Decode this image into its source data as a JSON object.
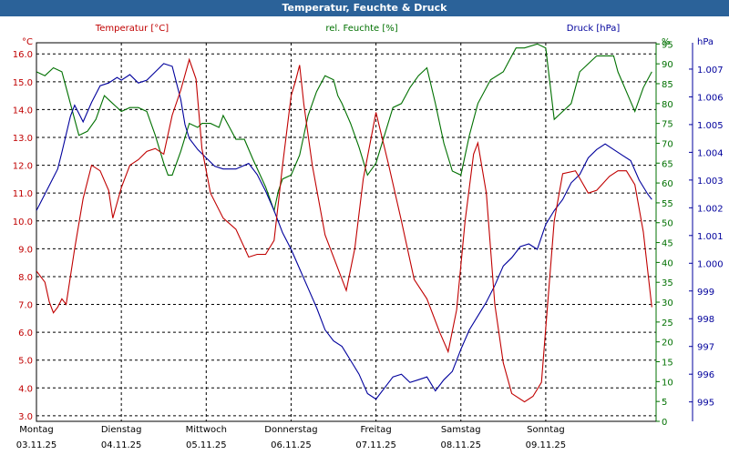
{
  "window_title": "Temperatur, Feuchte & Druck",
  "colors": {
    "temperature": "#c00000",
    "humidity": "#007000",
    "pressure": "#00009c",
    "grid": "#000000",
    "title_bar": "#2b6299"
  },
  "chart_data": {
    "type": "line",
    "title": "Temperatur, Feuchte & Druck",
    "x": {
      "unit": "days since Montag 03.11.25 00:00",
      "range": [
        0,
        7.3
      ],
      "ticks": [
        {
          "day": "Montag",
          "date": "03.11.25"
        },
        {
          "day": "Dienstag",
          "date": "04.11.25"
        },
        {
          "day": "Mittwoch",
          "date": "05.11.25"
        },
        {
          "day": "Donnerstag",
          "date": "06.11.25"
        },
        {
          "day": "Freitag",
          "date": "07.11.25"
        },
        {
          "day": "Samstag",
          "date": "08.11.25"
        },
        {
          "day": "Sonntag",
          "date": "09.11.25"
        }
      ]
    },
    "axes": {
      "temperature": {
        "label": "Temperatur [°C]",
        "unit_label": "°C",
        "range": [
          2.8,
          16.4
        ],
        "ticks": [
          "3.0",
          "4.0",
          "5.0",
          "6.0",
          "7.0",
          "8.0",
          "9.0",
          "10.0",
          "11.0",
          "12.0",
          "13.0",
          "14.0",
          "15.0",
          "16.0"
        ]
      },
      "humidity": {
        "label": "rel. Feuchte [%]",
        "unit_label": "%",
        "range": [
          0,
          95.3
        ],
        "ticks": [
          "0",
          "5",
          "10",
          "15",
          "20",
          "25",
          "30",
          "35",
          "40",
          "45",
          "50",
          "55",
          "60",
          "65",
          "70",
          "75",
          "80",
          "85",
          "90",
          "95"
        ]
      },
      "pressure": {
        "label": "Druck [hPa]",
        "unit_label": "hPa",
        "range": [
          994.3,
          1007.95
        ],
        "ticks": [
          "995",
          "996",
          "997",
          "998",
          "999",
          "1.000",
          "1.001",
          "1.002",
          "1.003",
          "1.004",
          "1.005",
          "1.006",
          "1.007"
        ]
      }
    },
    "series": [
      {
        "name": "Temperatur [°C]",
        "axis": "temperature",
        "x": [
          0,
          0.1,
          0.15,
          0.2,
          0.25,
          0.3,
          0.35,
          0.45,
          0.55,
          0.65,
          0.75,
          0.85,
          0.9,
          1.0,
          1.1,
          1.2,
          1.3,
          1.4,
          1.5,
          1.6,
          1.7,
          1.8,
          1.88,
          1.95,
          2.05,
          2.2,
          2.35,
          2.5,
          2.6,
          2.7,
          2.8,
          2.9,
          3.0,
          3.05,
          3.1,
          3.15,
          3.25,
          3.4,
          3.55,
          3.65,
          3.75,
          3.85,
          4.0,
          4.15,
          4.3,
          4.45,
          4.6,
          4.75,
          4.85,
          4.95,
          5.05,
          5.15,
          5.2,
          5.3,
          5.4,
          5.5,
          5.6,
          5.75,
          5.85,
          5.95,
          6.1,
          6.2,
          6.35,
          6.5,
          6.6,
          6.75,
          6.85,
          6.95,
          7.05,
          7.15,
          7.25
        ],
        "values": [
          8.2,
          7.8,
          7.1,
          6.7,
          6.9,
          7.2,
          7.0,
          9.0,
          10.8,
          12.0,
          11.8,
          11.1,
          10.1,
          11.2,
          12.0,
          12.2,
          12.5,
          12.6,
          12.4,
          13.8,
          14.7,
          15.8,
          15.1,
          12.6,
          11.0,
          10.1,
          9.7,
          8.7,
          8.8,
          8.8,
          9.3,
          12.0,
          14.5,
          15.0,
          15.6,
          14.2,
          12.0,
          9.5,
          8.3,
          7.5,
          9.0,
          11.5,
          13.9,
          12.0,
          10.0,
          7.9,
          7.2,
          6.0,
          5.3,
          6.8,
          10.0,
          12.4,
          12.8,
          11.0,
          7.0,
          4.9,
          3.8,
          3.5,
          3.7,
          4.2,
          10.0,
          11.7,
          11.8,
          11.0,
          11.1,
          11.6,
          11.8,
          11.8,
          11.3,
          9.6,
          6.9
        ]
      },
      {
        "name": "rel. Feuchte [%]",
        "axis": "humidity",
        "x": [
          0,
          0.1,
          0.2,
          0.3,
          0.35,
          0.45,
          0.5,
          0.6,
          0.7,
          0.8,
          0.9,
          1.0,
          1.1,
          1.2,
          1.3,
          1.4,
          1.5,
          1.55,
          1.6,
          1.7,
          1.8,
          1.9,
          1.95,
          2.05,
          2.15,
          2.2,
          2.3,
          2.35,
          2.45,
          2.55,
          2.7,
          2.8,
          2.85,
          2.9,
          3.0,
          3.1,
          3.2,
          3.3,
          3.4,
          3.5,
          3.55,
          3.6,
          3.7,
          3.8,
          3.9,
          4.0,
          4.1,
          4.2,
          4.3,
          4.35,
          4.4,
          4.5,
          4.6,
          4.7,
          4.8,
          4.9,
          5.0,
          5.1,
          5.2,
          5.35,
          5.5,
          5.6,
          5.65,
          5.75,
          5.9,
          6.0,
          6.1,
          6.2,
          6.3,
          6.4,
          6.5,
          6.6,
          6.7,
          6.8,
          6.85,
          6.95,
          7.05,
          7.15,
          7.25
        ],
        "values": [
          88,
          87,
          89,
          88,
          84,
          76,
          72,
          73,
          76,
          82,
          80,
          78,
          79,
          79,
          78,
          72,
          65,
          62,
          62,
          68,
          75,
          74,
          75,
          75,
          74,
          77,
          73,
          71,
          71,
          66,
          59,
          53,
          58,
          61,
          62,
          67,
          77,
          83,
          87,
          86,
          82,
          80,
          75,
          69,
          62,
          65,
          72,
          79,
          80,
          82,
          84,
          87,
          89,
          80,
          70,
          63,
          62,
          72,
          80,
          86,
          88,
          92,
          94,
          94,
          95,
          94,
          76,
          78,
          80,
          88,
          90,
          92,
          92,
          92,
          88,
          83,
          78,
          84,
          88
        ]
      },
      {
        "name": "Druck [hPa]",
        "axis": "pressure",
        "x": [
          0,
          0.05,
          0.15,
          0.25,
          0.3,
          0.4,
          0.45,
          0.5,
          0.55,
          0.65,
          0.7,
          0.75,
          0.85,
          0.95,
          1.0,
          1.1,
          1.2,
          1.3,
          1.4,
          1.5,
          1.6,
          1.65,
          1.7,
          1.75,
          1.8,
          1.9,
          2.0,
          2.1,
          2.2,
          2.35,
          2.5,
          2.6,
          2.7,
          2.8,
          2.9,
          3.0,
          3.1,
          3.2,
          3.3,
          3.4,
          3.5,
          3.6,
          3.7,
          3.8,
          3.9,
          4.0,
          4.1,
          4.2,
          4.3,
          4.4,
          4.5,
          4.6,
          4.7,
          4.8,
          4.9,
          5.0,
          5.1,
          5.2,
          5.3,
          5.4,
          5.5,
          5.6,
          5.7,
          5.8,
          5.9,
          6.0,
          6.1,
          6.2,
          6.3,
          6.4,
          6.5,
          6.6,
          6.7,
          6.8,
          6.9,
          7.0,
          7.1,
          7.2,
          7.25
        ],
        "values": [
          1001.9,
          1002.2,
          1002.8,
          1003.4,
          1004.0,
          1005.3,
          1005.7,
          1005.4,
          1005.1,
          1005.8,
          1006.1,
          1006.4,
          1006.5,
          1006.7,
          1006.6,
          1006.8,
          1006.5,
          1006.6,
          1006.9,
          1007.2,
          1007.1,
          1006.5,
          1005.9,
          1005.0,
          1004.5,
          1004.1,
          1003.8,
          1003.5,
          1003.4,
          1003.4,
          1003.6,
          1003.2,
          1002.6,
          1001.9,
          1001.1,
          1000.5,
          999.8,
          999.1,
          998.4,
          997.6,
          997.2,
          997.0,
          996.5,
          996.0,
          995.3,
          995.1,
          995.5,
          995.9,
          996.0,
          995.7,
          995.8,
          995.9,
          995.4,
          995.8,
          996.1,
          996.9,
          997.6,
          998.1,
          998.6,
          999.2,
          999.9,
          1000.2,
          1000.6,
          1000.7,
          1000.5,
          1001.4,
          1001.9,
          1002.3,
          1002.9,
          1003.2,
          1003.8,
          1004.1,
          1004.3,
          1004.1,
          1003.9,
          1003.7,
          1003.0,
          1002.5,
          1002.3
        ]
      }
    ]
  }
}
